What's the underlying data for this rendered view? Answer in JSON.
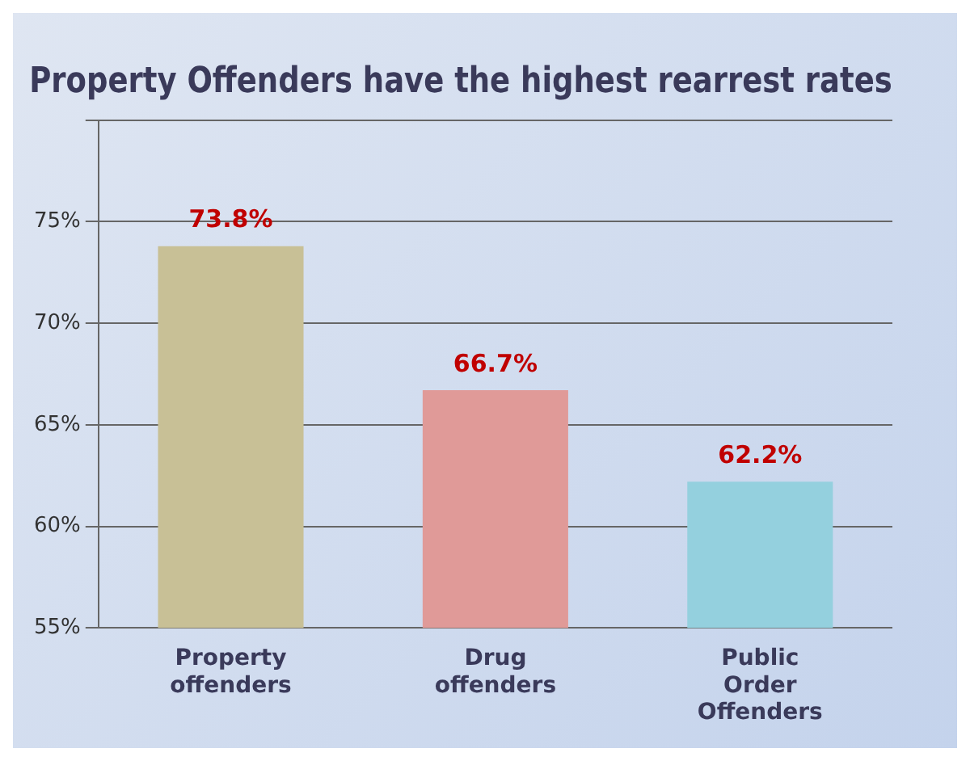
{
  "chart_data": {
    "type": "bar",
    "title": "Property Offenders have the highest rearrest rates",
    "categories": [
      "Property offenders",
      "Drug offenders",
      "Public Order Offenders"
    ],
    "values": [
      73.8,
      66.7,
      62.2
    ],
    "colors": [
      "#c8c096",
      "#e09a98",
      "#94d0de"
    ],
    "value_labels": [
      "73.8%",
      "66.7%",
      "62.2%"
    ],
    "ylim": [
      55,
      80
    ],
    "yticks": [
      {
        "value": 55,
        "label": "55%"
      },
      {
        "value": 60,
        "label": "60%"
      },
      {
        "value": 65,
        "label": "65%"
      },
      {
        "value": 70,
        "label": "70%"
      },
      {
        "value": 75,
        "label": "75%"
      },
      {
        "value": 80,
        "label": null
      }
    ],
    "grid": "y",
    "legend": false
  }
}
